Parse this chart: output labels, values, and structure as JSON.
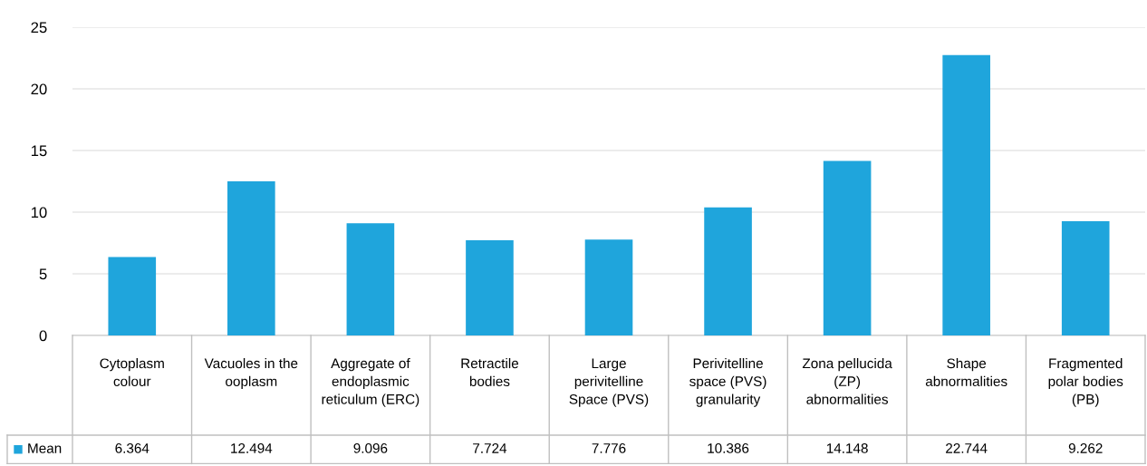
{
  "chart_data": {
    "type": "bar",
    "categories": [
      "Cytoplasm colour",
      "Vacuoles in the ooplasm",
      "Aggregate of endoplasmic reticulum (ERC)",
      "Retractile bodies",
      "Large perivitelline Space (PVS)",
      "Perivitelline space (PVS) granularity",
      "Zona pellucida (ZP) abnormalities",
      "Shape abnormalities",
      "Fragmented polar bodies (PB)"
    ],
    "series": [
      {
        "name": "Mean",
        "color": "#1fa5dc",
        "values": [
          6.364,
          12.494,
          9.096,
          7.724,
          7.776,
          10.386,
          14.148,
          22.744,
          9.262
        ]
      }
    ],
    "ylim": [
      0,
      25
    ],
    "yticks": [
      0,
      5,
      10,
      15,
      20,
      25
    ],
    "grid": "y",
    "data_labels": true
  }
}
